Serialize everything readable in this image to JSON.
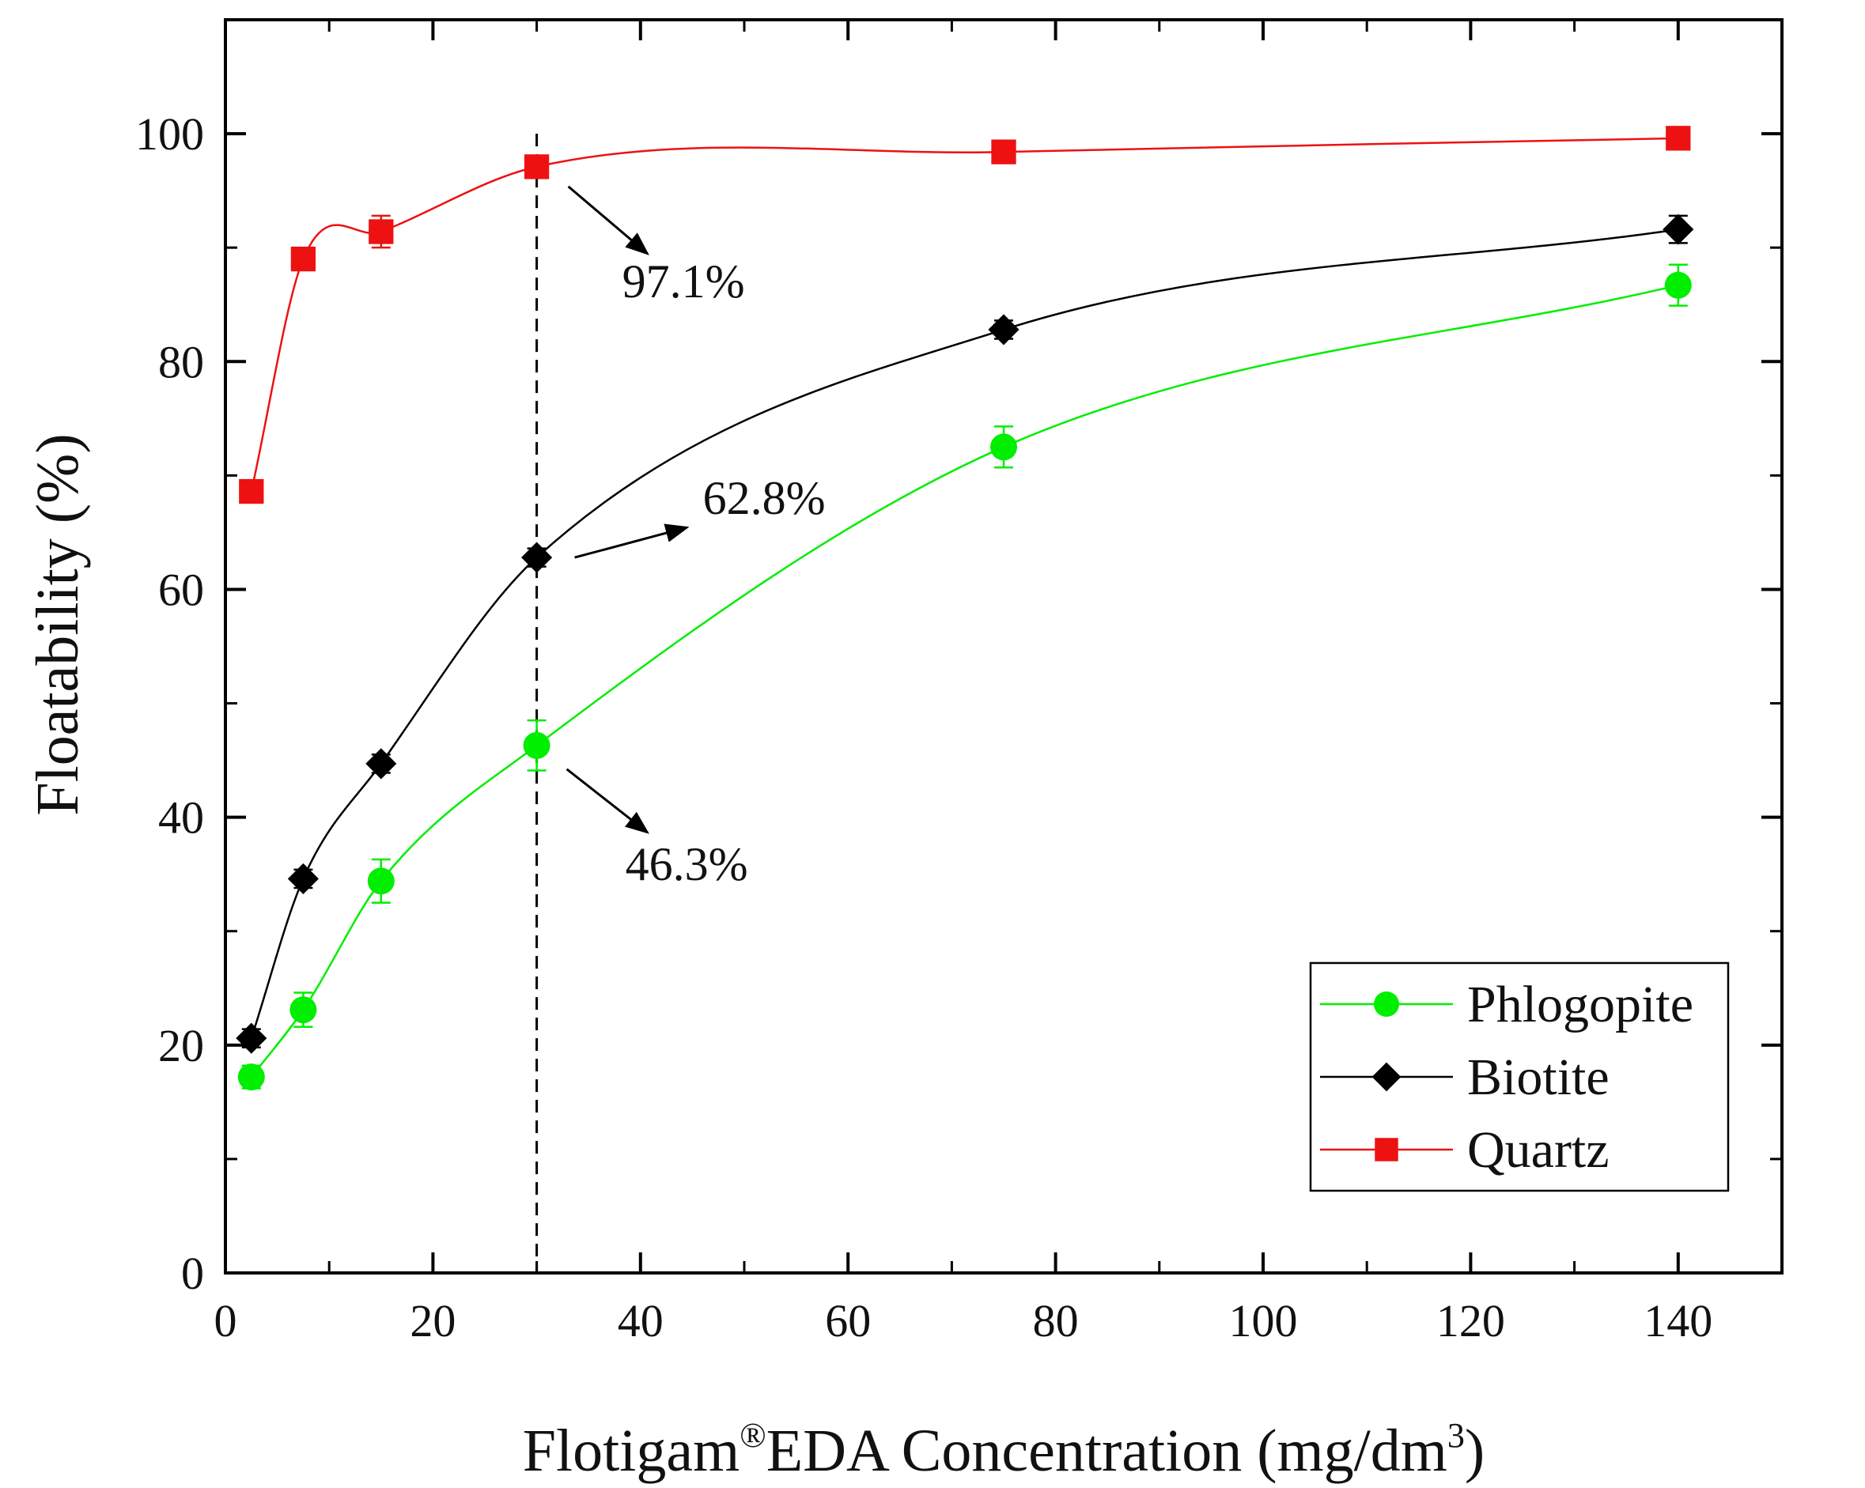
{
  "chart_data": {
    "type": "line",
    "title": "",
    "xlabel": {
      "prefix": "Flotigam",
      "reg": "®",
      "middle": "EDA Concentration (mg/dm",
      "sup": "3",
      "suffix": ")"
    },
    "ylabel": "Floatability (%)",
    "xlim": [
      0,
      150
    ],
    "ylim": [
      0,
      110
    ],
    "xticks": [
      0,
      20,
      40,
      60,
      80,
      100,
      120,
      140
    ],
    "yticks": [
      0,
      20,
      40,
      60,
      80,
      100
    ],
    "x_minor_step": 10,
    "y_minor_step": 10,
    "grid": false,
    "legend_position": "bottom-right",
    "series": [
      {
        "name": "Phlogopite",
        "color": "#00ee00",
        "marker": "circle",
        "x": [
          2.5,
          7.5,
          15,
          30,
          75,
          140
        ],
        "values": [
          17.2,
          23.1,
          34.4,
          46.3,
          72.5,
          86.7
        ],
        "errors": [
          1.0,
          1.5,
          1.9,
          2.2,
          1.8,
          1.8
        ]
      },
      {
        "name": "Biotite",
        "color": "#000000",
        "marker": "diamond",
        "x": [
          2.5,
          7.5,
          15,
          30,
          75,
          140
        ],
        "values": [
          20.6,
          34.6,
          44.7,
          62.8,
          82.8,
          91.6
        ],
        "errors": [
          0.8,
          0.8,
          0.8,
          0.8,
          0.8,
          1.2
        ]
      },
      {
        "name": "Quartz",
        "color": "#ee1111",
        "marker": "square",
        "x": [
          2.5,
          7.5,
          15,
          30,
          75,
          140
        ],
        "values": [
          68.6,
          89.0,
          91.4,
          97.1,
          98.4,
          99.6
        ],
        "errors": [
          0.6,
          0.8,
          1.4,
          0.9,
          0.6,
          0.6
        ]
      }
    ],
    "reference_line": {
      "x": 30,
      "style": "dashed"
    },
    "annotations": [
      {
        "text": "97.1%",
        "series": "Quartz"
      },
      {
        "text": "62.8%",
        "series": "Biotite"
      },
      {
        "text": "46.3%",
        "series": "Phlogopite"
      }
    ]
  }
}
